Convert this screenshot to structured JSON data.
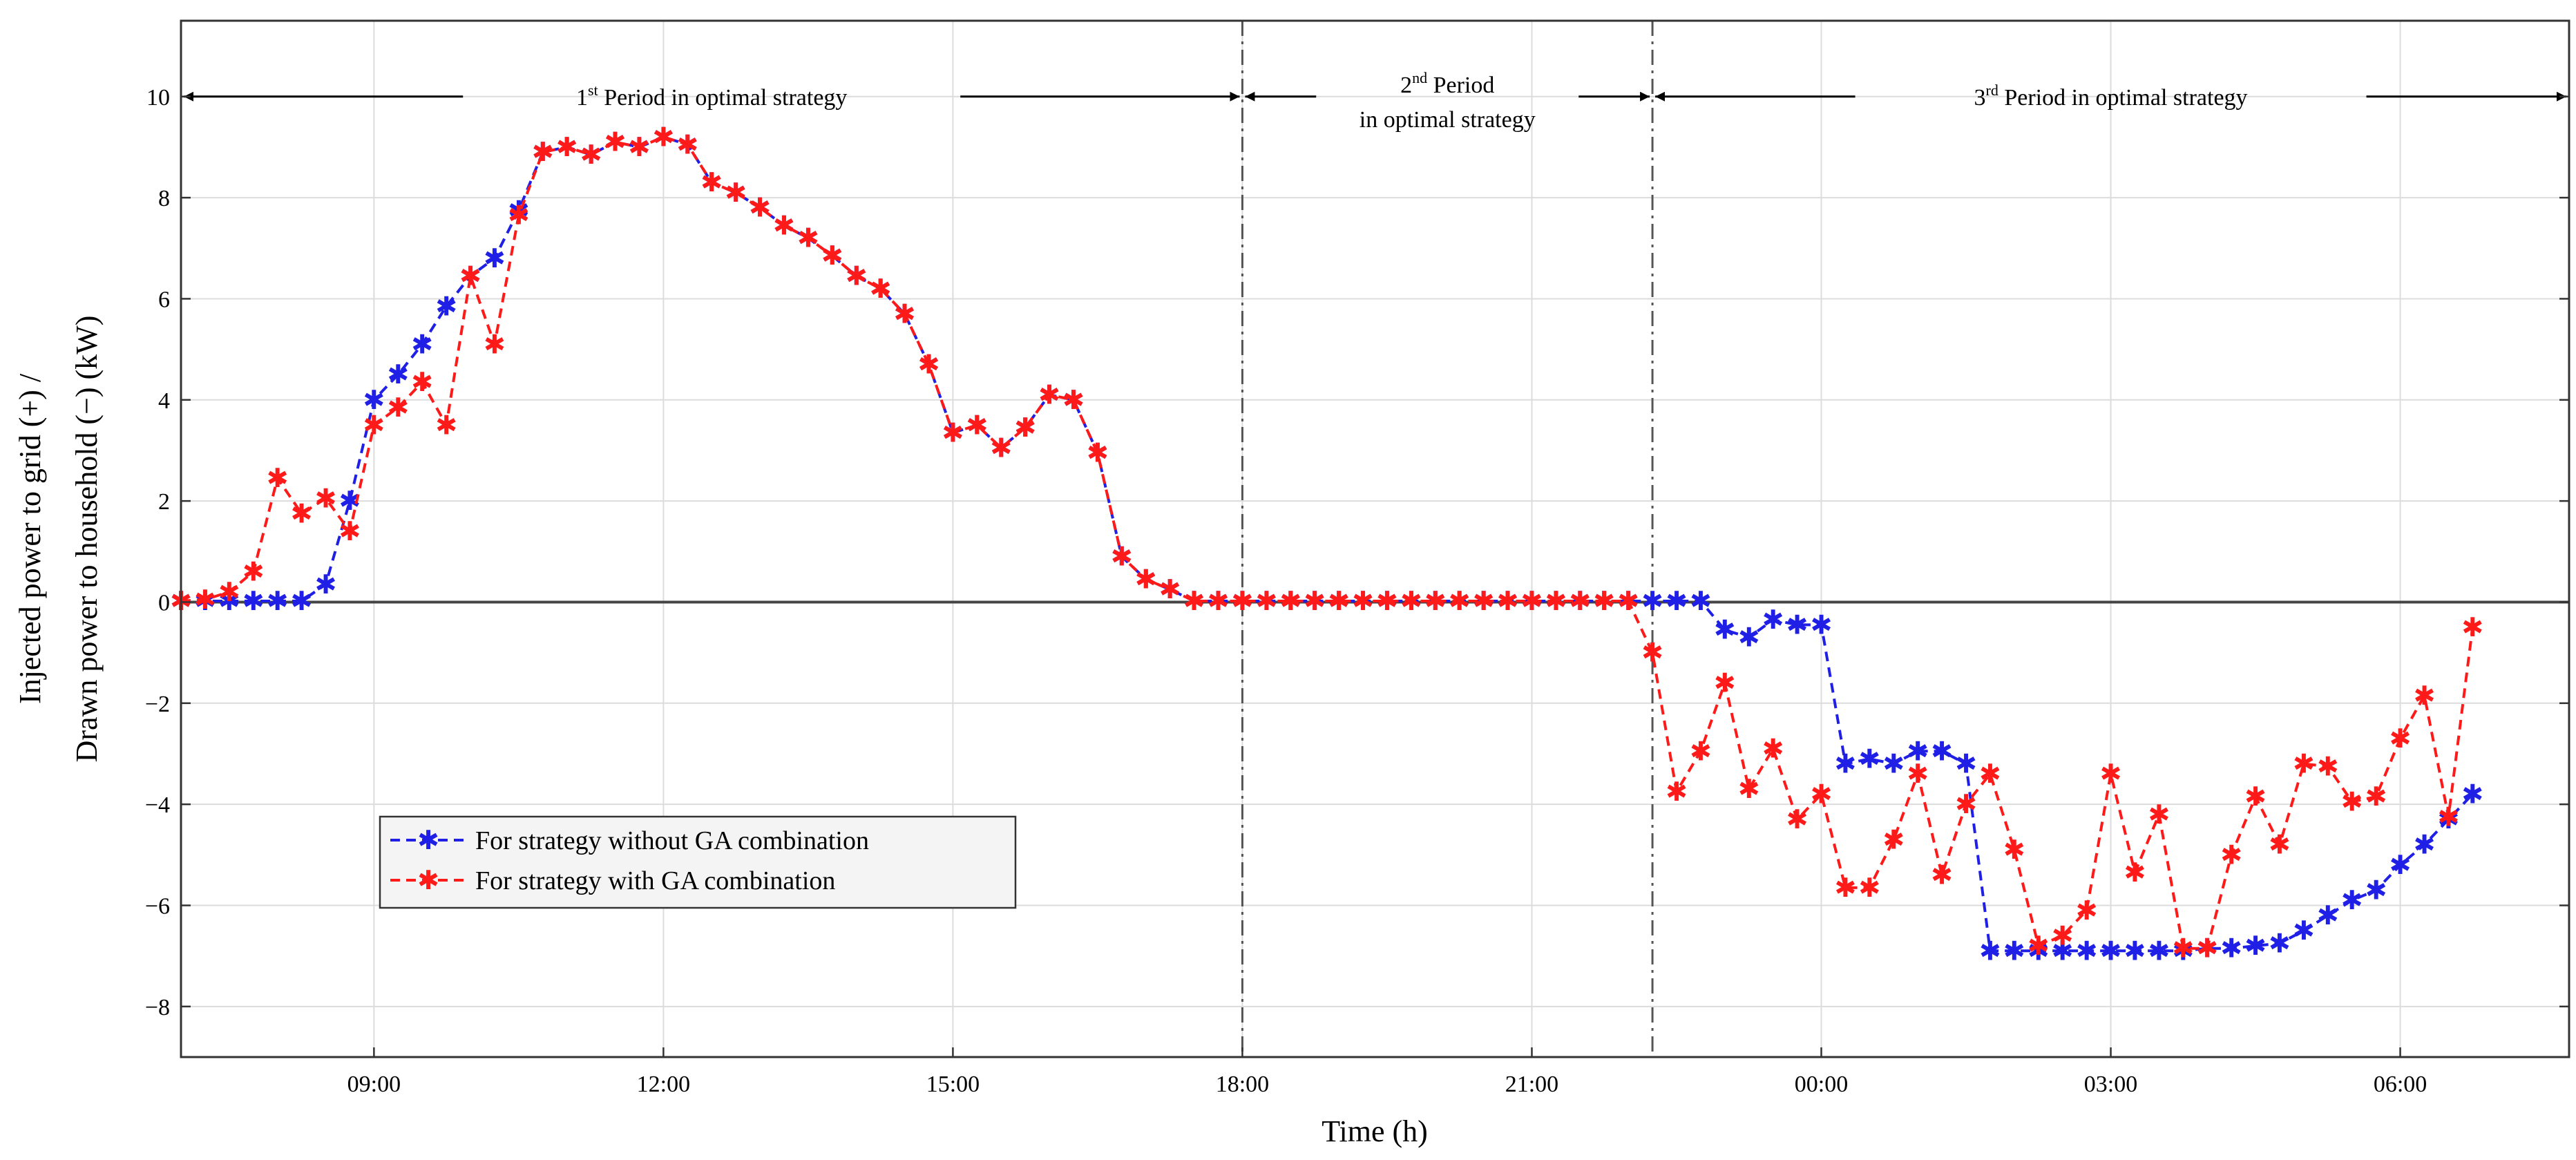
{
  "chart_data": {
    "type": "line",
    "xlabel": "Time (h)",
    "ylabel_line1": "Injected power to grid (+) /",
    "ylabel_line2": "Drawn power to household (−) (kW)",
    "xlim": [
      7,
      31.75
    ],
    "ylim": [
      -9,
      11.5
    ],
    "yticks": [
      -8,
      -6,
      -4,
      -2,
      0,
      2,
      4,
      6,
      8,
      10
    ],
    "ytick_labels": [
      "−8",
      "−6",
      "−4",
      "−2",
      "0",
      "2",
      "4",
      "6",
      "8",
      "10"
    ],
    "xticks": [
      9,
      12,
      15,
      18,
      21,
      24,
      27,
      30
    ],
    "xtick_labels": [
      "09:00",
      "12:00",
      "15:00",
      "18:00",
      "21:00",
      "00:00",
      "03:00",
      "06:00"
    ],
    "grid": true,
    "period_boundaries": [
      18,
      22.25
    ],
    "periods": [
      {
        "label_pre": "1",
        "label_sup": "st",
        "label_post": " Period in optimal strategy",
        "start": 7,
        "end": 18
      },
      {
        "label_pre": "2",
        "label_sup": "nd",
        "label_post": " Period",
        "label_line2": "in optimal strategy",
        "start": 18,
        "end": 22.25
      },
      {
        "label_pre": "3",
        "label_sup": "rd",
        "label_post": " Period in optimal strategy",
        "start": 22.25,
        "end": 31.75
      }
    ],
    "legend_position": "lower-left",
    "colors": {
      "series_blue": "#1f1fe6",
      "series_red": "#ff1a1a",
      "axis": "#333333",
      "grid": "#dcdcdc"
    },
    "series": [
      {
        "name": "For strategy without GA combination",
        "color": "#1f1fe6",
        "x": [
          7,
          7.25,
          7.5,
          7.75,
          8,
          8.25,
          8.5,
          8.75,
          9,
          9.25,
          9.5,
          9.75,
          10,
          10.25,
          10.5,
          10.75,
          11,
          11.25,
          11.5,
          11.75,
          12,
          12.25,
          12.5,
          12.75,
          13,
          13.25,
          13.5,
          13.75,
          14,
          14.25,
          14.5,
          14.75,
          15,
          15.25,
          15.5,
          15.75,
          16,
          16.25,
          16.5,
          16.75,
          17,
          17.25,
          17.5,
          17.75,
          18,
          18.25,
          18.5,
          18.75,
          19,
          19.25,
          19.5,
          19.75,
          20,
          20.25,
          20.5,
          20.75,
          21,
          21.25,
          21.5,
          21.75,
          22,
          22.25,
          22.5,
          22.75,
          23,
          23.25,
          23.5,
          23.75,
          24,
          24.25,
          24.5,
          24.75,
          25,
          25.25,
          25.5,
          25.75,
          26,
          26.25,
          26.5,
          26.75,
          27,
          27.25,
          27.5,
          27.75,
          28,
          28.25,
          28.5,
          28.75,
          29,
          29.25,
          29.5,
          29.75,
          30,
          30.25,
          30.5,
          30.75
        ],
        "values": [
          0.02,
          0.02,
          0.02,
          0.02,
          0.02,
          0.02,
          0.35,
          2.0,
          4.0,
          4.5,
          5.1,
          5.85,
          6.45,
          6.8,
          7.75,
          8.9,
          9.0,
          8.85,
          9.1,
          9.0,
          9.2,
          9.05,
          8.3,
          8.1,
          7.8,
          7.45,
          7.2,
          6.85,
          6.45,
          6.2,
          5.7,
          4.7,
          3.35,
          3.5,
          3.05,
          3.45,
          4.1,
          4.0,
          2.95,
          0.9,
          0.45,
          0.25,
          0.02,
          0.02,
          0.02,
          0.02,
          0.02,
          0.02,
          0.02,
          0.02,
          0.02,
          0.02,
          0.02,
          0.02,
          0.02,
          0.02,
          0.02,
          0.02,
          0.02,
          0.02,
          0.02,
          0.02,
          0.02,
          0.02,
          -0.55,
          -0.7,
          -0.35,
          -0.45,
          -0.45,
          -3.2,
          -3.1,
          -3.2,
          -2.95,
          -2.95,
          -3.2,
          -6.9,
          -6.9,
          -6.9,
          -6.9,
          -6.9,
          -6.9,
          -6.9,
          -6.9,
          -6.9,
          -6.85,
          -6.85,
          -6.8,
          -6.75,
          -6.5,
          -6.2,
          -5.9,
          -5.7,
          -5.2,
          -4.8,
          -4.3,
          -3.8
        ]
      },
      {
        "name": "For strategy with GA combination",
        "color": "#ff1a1a",
        "x": [
          7,
          7.25,
          7.5,
          7.75,
          8,
          8.25,
          8.5,
          8.75,
          9,
          9.25,
          9.5,
          9.75,
          10,
          10.25,
          10.5,
          10.75,
          11,
          11.25,
          11.5,
          11.75,
          12,
          12.25,
          12.5,
          12.75,
          13,
          13.25,
          13.5,
          13.75,
          14,
          14.25,
          14.5,
          14.75,
          15,
          15.25,
          15.5,
          15.75,
          16,
          16.25,
          16.5,
          16.75,
          17,
          17.25,
          17.5,
          17.75,
          18,
          18.25,
          18.5,
          18.75,
          19,
          19.25,
          19.5,
          19.75,
          20,
          20.25,
          20.5,
          20.75,
          21,
          21.25,
          21.5,
          21.75,
          22,
          22.25,
          22.5,
          22.75,
          23,
          23.25,
          23.5,
          23.75,
          24,
          24.25,
          24.5,
          24.75,
          25,
          25.25,
          25.5,
          25.75,
          26,
          26.25,
          26.5,
          26.75,
          27,
          27.25,
          27.5,
          27.75,
          28,
          28.25,
          28.5,
          28.75,
          29,
          29.25,
          29.5,
          29.75,
          30,
          30.25,
          30.5,
          30.75
        ],
        "values": [
          0.02,
          0.05,
          0.2,
          0.6,
          2.45,
          1.75,
          2.05,
          1.4,
          3.5,
          3.85,
          4.35,
          3.5,
          6.45,
          5.1,
          7.65,
          8.9,
          9.0,
          8.85,
          9.1,
          9.0,
          9.2,
          9.05,
          8.3,
          8.1,
          7.8,
          7.45,
          7.2,
          6.85,
          6.45,
          6.2,
          5.7,
          4.7,
          3.35,
          3.5,
          3.05,
          3.45,
          4.1,
          4.0,
          2.95,
          0.9,
          0.45,
          0.25,
          0.02,
          0.02,
          0.02,
          0.02,
          0.02,
          0.02,
          0.02,
          0.02,
          0.02,
          0.02,
          0.02,
          0.02,
          0.02,
          0.02,
          0.02,
          0.02,
          0.02,
          0.02,
          0.02,
          -1.0,
          -3.75,
          -2.95,
          -1.6,
          -3.7,
          -2.9,
          -4.3,
          -3.8,
          -5.65,
          -5.65,
          -4.7,
          -3.4,
          -5.4,
          -4.0,
          -3.4,
          -4.9,
          -6.8,
          -6.6,
          -6.1,
          -3.4,
          -5.35,
          -4.2,
          -6.85,
          -6.85,
          -5.0,
          -3.85,
          -4.8,
          -3.2,
          -3.25,
          -3.95,
          -3.85,
          -2.7,
          -1.85,
          -4.25,
          -0.5
        ]
      }
    ]
  }
}
